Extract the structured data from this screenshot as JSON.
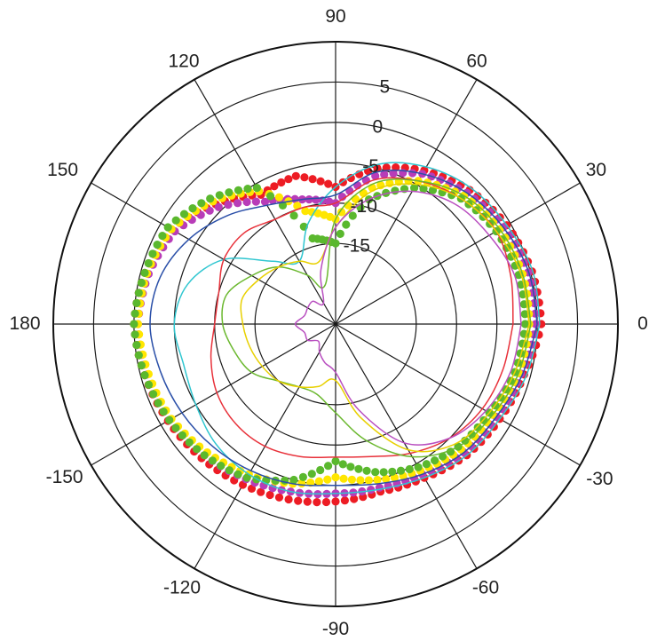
{
  "chart_data": {
    "type": "polar",
    "title": "",
    "angle_unit": "degrees",
    "angular_ticks": [
      "90",
      "60",
      "30",
      "0",
      "-30",
      "-60",
      "-90",
      "-120",
      "-150",
      "180",
      "150",
      "120"
    ],
    "angular_tick_values": [
      90,
      60,
      30,
      0,
      -30,
      -60,
      -90,
      -120,
      -150,
      180,
      150,
      120
    ],
    "radial_ticks": [
      "5",
      "0",
      "-5",
      "-10",
      "-15"
    ],
    "radial_tick_values": [
      5,
      0,
      -5,
      -10,
      -15
    ],
    "rlim": [
      -25,
      10
    ],
    "grid": true,
    "legend": "none",
    "series": [
      {
        "style": "markers",
        "color": "#ed1c24",
        "theta": [
          0,
          15,
          30,
          45,
          60,
          75,
          90,
          105,
          120,
          135,
          150,
          165,
          180,
          -165,
          -150,
          -135,
          -120,
          -105,
          -90,
          -75,
          -60,
          -45,
          -30,
          -15
        ],
        "r": [
          0.5,
          0.2,
          -0.5,
          -1.5,
          -3,
          -5,
          -8,
          -6,
          -6.5,
          -4,
          -1.5,
          -0.5,
          0,
          -0.5,
          -1,
          -1.5,
          -2,
          -2.5,
          -3,
          -3.5,
          -3,
          -2,
          -1.5,
          -0.8
        ]
      },
      {
        "style": "markers",
        "color": "#b83cb8",
        "theta": [
          0,
          15,
          30,
          45,
          60,
          75,
          90,
          105,
          120,
          135,
          150,
          165,
          180,
          -165,
          -150,
          -135,
          -120,
          -105,
          -90,
          -75,
          -60,
          -45,
          -30,
          -15
        ],
        "r": [
          -0.2,
          -0.3,
          -1,
          -2,
          -3.5,
          -6,
          -10,
          -9,
          -7.5,
          -4.5,
          -2,
          -1,
          -0.5,
          -0.8,
          -1.2,
          -2,
          -2.8,
          -3.5,
          -4,
          -4,
          -3.5,
          -2.5,
          -2,
          -1.2
        ]
      },
      {
        "style": "markers",
        "color": "#ffe600",
        "theta": [
          0,
          15,
          30,
          45,
          60,
          75,
          90,
          105,
          120,
          135,
          150,
          165,
          180,
          -165,
          -150,
          -135,
          -120,
          -105,
          -90,
          -75,
          -60,
          -45,
          -30,
          -15
        ],
        "r": [
          -1,
          -1,
          -1.5,
          -2.5,
          -4.5,
          -7.5,
          -12,
          -10.5,
          -6,
          -3.5,
          -1.5,
          -0.8,
          -0.5,
          -1,
          -1.5,
          -2.5,
          -3.5,
          -4.5,
          -6,
          -5,
          -4,
          -3,
          -2.5,
          -1.5
        ]
      },
      {
        "style": "markers",
        "color": "#5ab82e",
        "theta": [
          0,
          15,
          30,
          45,
          60,
          75,
          90,
          105,
          120,
          135,
          150,
          165,
          180,
          -165,
          -150,
          -135,
          -120,
          -105,
          -90,
          -75,
          -60,
          -45,
          -30,
          -15
        ],
        "r": [
          -1.5,
          -1.5,
          -2,
          -3,
          -5.5,
          -9,
          -15,
          -14,
          -5.5,
          -3,
          -1,
          -0.5,
          0,
          -0.5,
          -1.2,
          -2,
          -3,
          -5,
          -8,
          -6,
          -4.5,
          -3.5,
          -3,
          -2
        ]
      },
      {
        "style": "line",
        "color": "#2fc6d0",
        "theta": [
          0,
          15,
          30,
          45,
          60,
          75,
          90,
          105,
          120,
          135,
          150,
          165,
          180,
          -165,
          -150,
          -135,
          -120,
          -105,
          -90,
          -75,
          -60,
          -45,
          -30,
          -15,
          0
        ],
        "r": [
          0.3,
          0.3,
          -0.5,
          -1.2,
          -2.5,
          -4.5,
          -8,
          -12,
          -16,
          -14,
          -9,
          -6,
          -5,
          -5.5,
          -5,
          -4,
          -3.5,
          -3.5,
          -4,
          -3.8,
          -3,
          -2,
          -1.5,
          -0.5,
          0.3
        ]
      },
      {
        "style": "line",
        "color": "#2a4fa8",
        "theta": [
          0,
          15,
          30,
          45,
          60,
          75,
          90,
          105,
          120,
          135,
          150,
          165,
          180,
          -165,
          -150,
          -135,
          -120,
          -105,
          -90,
          -75,
          -60,
          -45,
          -30,
          -15,
          0
        ],
        "r": [
          0,
          -0.2,
          -1,
          -2,
          -3.5,
          -5.5,
          -9,
          -9,
          -8,
          -6,
          -4,
          -2.5,
          -2,
          -2.5,
          -3,
          -3.5,
          -4,
          -4.5,
          -5,
          -4.5,
          -3.5,
          -2.5,
          -2,
          -1,
          0
        ]
      },
      {
        "style": "line",
        "color": "#e8313a",
        "theta": [
          0,
          15,
          30,
          45,
          60,
          75,
          90,
          105,
          120,
          135,
          150,
          165,
          180,
          -165,
          -150,
          -135,
          -120,
          -105,
          -90,
          -75,
          -60,
          -45,
          -30,
          -15,
          0
        ],
        "r": [
          -3,
          -2.5,
          -2,
          -3,
          -4.5,
          -6.5,
          -10,
          -10,
          -10,
          -9,
          -9,
          -10,
          -10,
          -9,
          -8,
          -7.5,
          -7.5,
          -8,
          -8.5,
          -8,
          -6.5,
          -5,
          -4,
          -3.5,
          -3
        ]
      },
      {
        "style": "line",
        "color": "#6bb82f",
        "theta": [
          0,
          15,
          30,
          45,
          60,
          75,
          90,
          105,
          120,
          135,
          150,
          165,
          180,
          -165,
          -150,
          -135,
          -120,
          -105,
          -90,
          -75,
          -60,
          -45,
          -30,
          -15,
          0
        ],
        "r": [
          -0.8,
          -1,
          -1.5,
          -2.5,
          -4.5,
          -7,
          -12,
          -20,
          -18,
          -15,
          -13,
          -11,
          -11,
          -12,
          -13,
          -15,
          -16,
          -16,
          -14,
          -10,
          -6,
          -3.5,
          -2.5,
          -1.5,
          -0.8
        ]
      },
      {
        "style": "line",
        "color": "#e8d000",
        "theta": [
          0,
          15,
          30,
          45,
          60,
          75,
          90,
          105,
          120,
          135,
          150,
          165,
          180,
          -165,
          -150,
          -135,
          -120,
          -105,
          -90,
          -75,
          -60,
          -45,
          -30,
          -15,
          0
        ],
        "r": [
          -1,
          -1.2,
          -2,
          -3,
          -5,
          -8,
          -13,
          -17,
          -16,
          -15,
          -14,
          -13,
          -13.5,
          -14,
          -14.5,
          -15,
          -16,
          -17,
          -18,
          -13,
          -7,
          -4,
          -3,
          -2,
          -1
        ]
      },
      {
        "style": "line",
        "color": "#b94fc0",
        "theta": [
          0,
          15,
          30,
          45,
          60,
          75,
          90,
          105,
          120,
          135,
          150,
          165,
          180,
          -165,
          -150,
          -135,
          -120,
          -105,
          -90,
          -75,
          -60,
          -45,
          -30,
          -15,
          0
        ],
        "r": [
          -2,
          -2,
          -3,
          -4,
          -6,
          -9,
          -13,
          -18,
          -22,
          -21,
          -21,
          -21,
          -20,
          -21,
          -21,
          -22,
          -21,
          -20,
          -19,
          -14,
          -8,
          -5,
          -3.5,
          -2.5,
          -2
        ]
      }
    ]
  }
}
